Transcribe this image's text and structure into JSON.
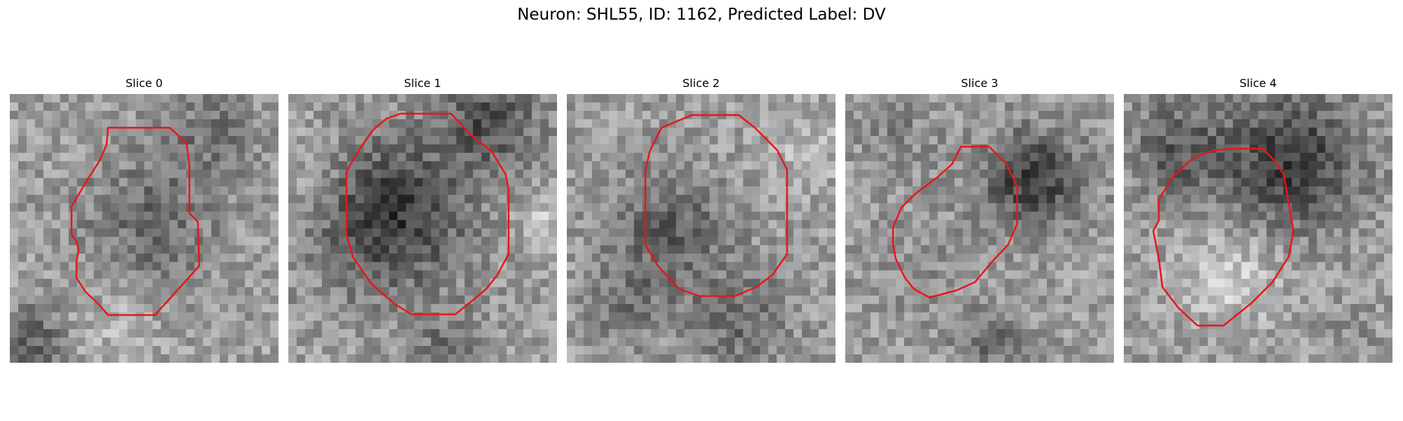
{
  "figure": {
    "title": "Neuron: SHL55, ID: 1162, Predicted Label: DV",
    "contour_color": "#e8161b"
  },
  "panels": [
    {
      "title": "Slice 0",
      "seed": 11,
      "blobs": [
        [
          0.52,
          0.48,
          0.25,
          -0.2
        ],
        [
          0.75,
          0.15,
          0.18,
          -0.15
        ],
        [
          0.08,
          0.92,
          0.12,
          -0.25
        ],
        [
          0.4,
          0.85,
          0.15,
          0.1
        ]
      ],
      "contour": [
        [
          140,
          48
        ],
        [
          228,
          48
        ],
        [
          252,
          70
        ],
        [
          256,
          102
        ],
        [
          256,
          170
        ],
        [
          268,
          182
        ],
        [
          270,
          245
        ],
        [
          225,
          295
        ],
        [
          213,
          308
        ],
        [
          207,
          315
        ],
        [
          140,
          315
        ],
        [
          125,
          298
        ],
        [
          108,
          282
        ],
        [
          95,
          262
        ],
        [
          95,
          240
        ],
        [
          98,
          222
        ],
        [
          95,
          210
        ],
        [
          88,
          200
        ],
        [
          88,
          160
        ],
        [
          100,
          140
        ],
        [
          112,
          120
        ],
        [
          128,
          95
        ],
        [
          138,
          72
        ]
      ]
    },
    {
      "title": "Slice 1",
      "seed": 23,
      "blobs": [
        [
          0.38,
          0.45,
          0.28,
          -0.4
        ],
        [
          0.75,
          0.1,
          0.18,
          -0.3
        ],
        [
          0.6,
          0.95,
          0.12,
          -0.2
        ],
        [
          0.95,
          0.45,
          0.1,
          0.15
        ],
        [
          0.08,
          0.3,
          0.15,
          0.1
        ]
      ],
      "contour": [
        [
          160,
          28
        ],
        [
          232,
          28
        ],
        [
          260,
          58
        ],
        [
          290,
          82
        ],
        [
          310,
          115
        ],
        [
          314,
          137
        ],
        [
          314,
          228
        ],
        [
          298,
          258
        ],
        [
          282,
          278
        ],
        [
          258,
          298
        ],
        [
          238,
          314
        ],
        [
          175,
          314
        ],
        [
          150,
          298
        ],
        [
          118,
          270
        ],
        [
          92,
          232
        ],
        [
          83,
          200
        ],
        [
          83,
          110
        ],
        [
          102,
          78
        ],
        [
          120,
          52
        ],
        [
          140,
          35
        ]
      ]
    },
    {
      "title": "Slice 2",
      "seed": 37,
      "blobs": [
        [
          0.38,
          0.52,
          0.22,
          -0.25
        ],
        [
          0.65,
          0.85,
          0.18,
          -0.2
        ],
        [
          0.2,
          0.8,
          0.15,
          -0.15
        ],
        [
          0.9,
          0.2,
          0.15,
          0.1
        ]
      ],
      "contour": [
        [
          135,
          48
        ],
        [
          178,
          30
        ],
        [
          245,
          30
        ],
        [
          268,
          48
        ],
        [
          300,
          80
        ],
        [
          314,
          108
        ],
        [
          314,
          228
        ],
        [
          293,
          258
        ],
        [
          270,
          275
        ],
        [
          240,
          288
        ],
        [
          190,
          288
        ],
        [
          160,
          278
        ],
        [
          130,
          245
        ],
        [
          112,
          215
        ],
        [
          112,
          110
        ],
        [
          118,
          82
        ]
      ]
    },
    {
      "title": "Slice 3",
      "seed": 51,
      "blobs": [
        [
          0.7,
          0.32,
          0.18,
          -0.4
        ],
        [
          0.2,
          0.15,
          0.15,
          -0.1
        ],
        [
          0.55,
          0.92,
          0.12,
          -0.2
        ],
        [
          0.32,
          0.65,
          0.25,
          -0.05
        ]
      ],
      "contour": [
        [
          165,
          75
        ],
        [
          205,
          75
        ],
        [
          230,
          100
        ],
        [
          245,
          132
        ],
        [
          245,
          185
        ],
        [
          232,
          215
        ],
        [
          210,
          238
        ],
        [
          185,
          268
        ],
        [
          158,
          280
        ],
        [
          120,
          290
        ],
        [
          98,
          278
        ],
        [
          85,
          262
        ],
        [
          72,
          235
        ],
        [
          68,
          215
        ],
        [
          68,
          190
        ],
        [
          80,
          162
        ],
        [
          100,
          142
        ],
        [
          132,
          118
        ],
        [
          152,
          100
        ]
      ]
    },
    {
      "title": "Slice 4",
      "seed": 67,
      "blobs": [
        [
          0.62,
          0.25,
          0.25,
          -0.4
        ],
        [
          0.2,
          0.2,
          0.18,
          -0.25
        ],
        [
          0.4,
          0.68,
          0.18,
          0.18
        ],
        [
          0.85,
          0.9,
          0.12,
          -0.05
        ]
      ],
      "contour": [
        [
          155,
          78
        ],
        [
          198,
          78
        ],
        [
          215,
          95
        ],
        [
          228,
          115
        ],
        [
          235,
          155
        ],
        [
          242,
          195
        ],
        [
          235,
          232
        ],
        [
          212,
          268
        ],
        [
          182,
          298
        ],
        [
          142,
          330
        ],
        [
          105,
          330
        ],
        [
          78,
          305
        ],
        [
          55,
          275
        ],
        [
          50,
          235
        ],
        [
          42,
          195
        ],
        [
          50,
          180
        ],
        [
          50,
          150
        ],
        [
          70,
          118
        ],
        [
          100,
          90
        ],
        [
          130,
          80
        ]
      ]
    }
  ]
}
